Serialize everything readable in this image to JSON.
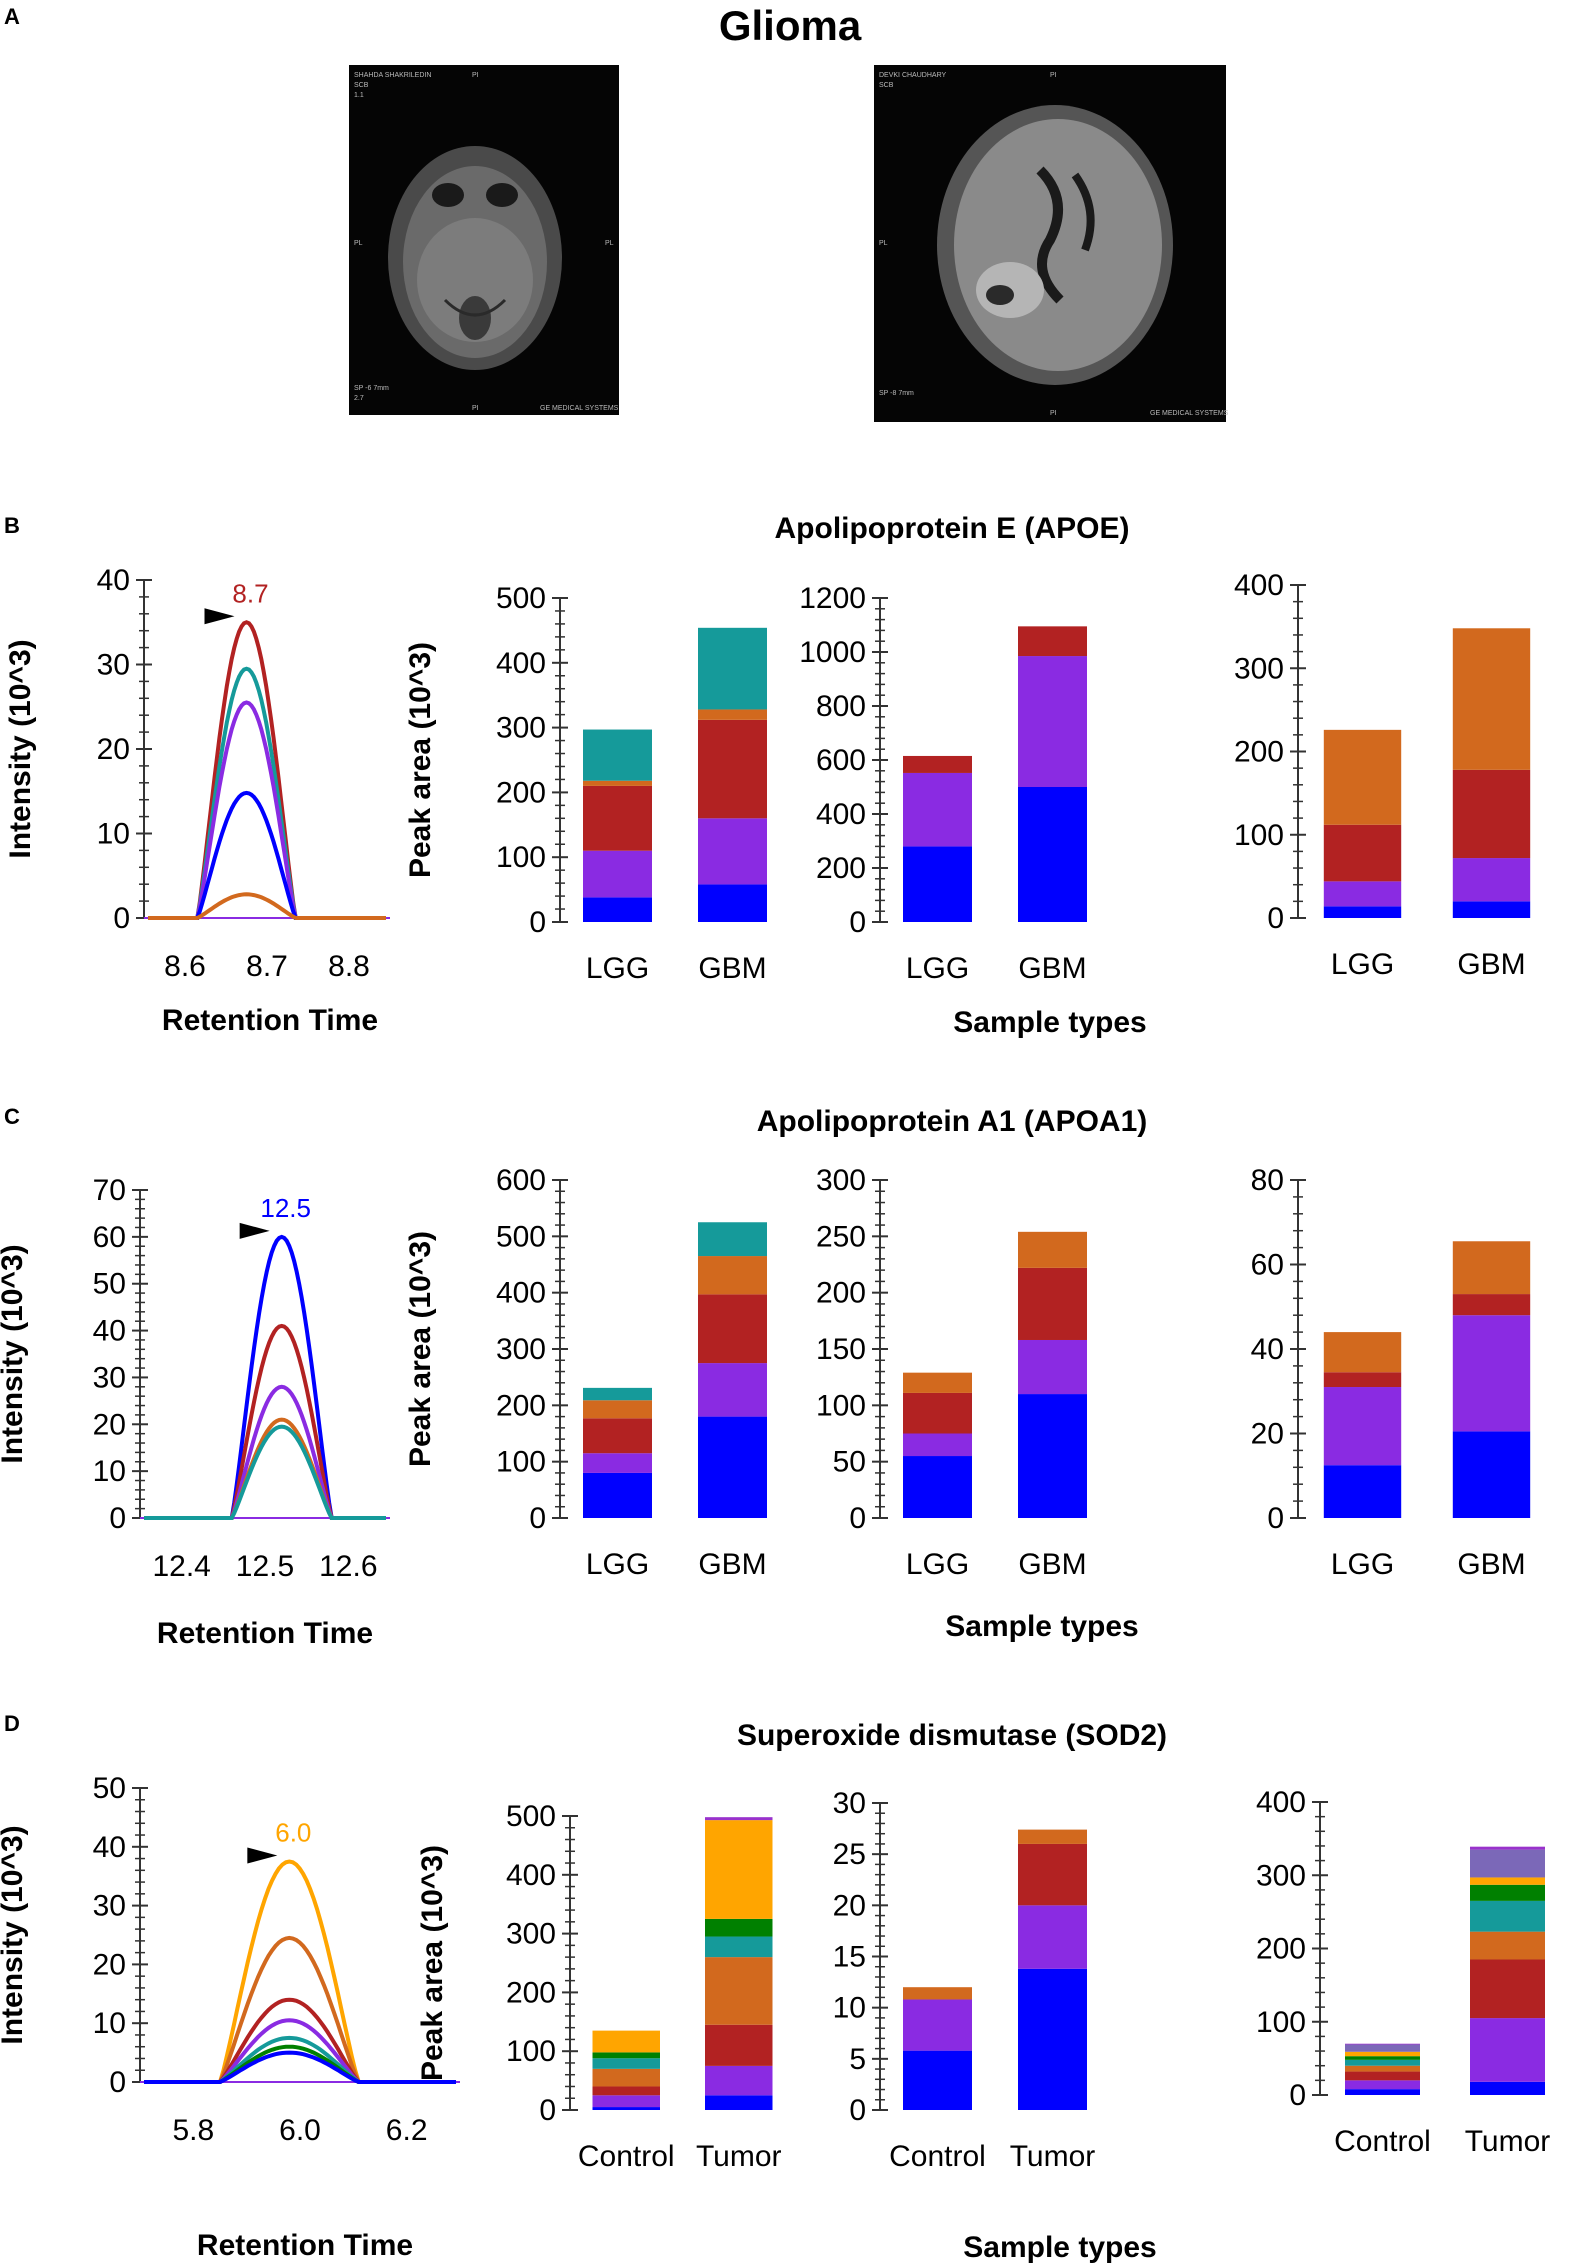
{
  "figure": {
    "title": "Glioma",
    "panel_labels": [
      "A",
      "B",
      "C",
      "D"
    ],
    "mri_images": [
      {
        "name": "mri-scan-left",
        "overlay_text": [
          "SHAHDA SHAKRILEDIN",
          "SCB",
          "1.1",
          "PI",
          "PL",
          "PL",
          "SP -6 7mm",
          "2.7",
          "PI",
          "GE MEDICAL SYSTEMS"
        ]
      },
      {
        "name": "mri-scan-right",
        "overlay_text": [
          "DEVKI CHAUDHARY",
          "SCB",
          "PI",
          "PL",
          "SP -8 7mm",
          "PI",
          "GE MEDICAL SYSTEMS"
        ]
      }
    ],
    "colors": {
      "blue": "#0000ff",
      "purple": "#8a2be2",
      "darkred": "#b22222",
      "orange": "#d2691e",
      "teal": "#159a9a",
      "gold": "#ffa500",
      "green": "#008000",
      "lavender": "#7b68b8"
    }
  },
  "chart_data": [
    {
      "panel": "B",
      "title": "Apolipoprotein E (APOE)",
      "type": "line",
      "xlabel": "Retention Time",
      "ylabel": "Intensity (10^3)",
      "xlim": [
        8.55,
        8.85
      ],
      "ylim": [
        0,
        40
      ],
      "xticks": [
        "8.6",
        "8.7",
        "8.8"
      ],
      "yticks": [
        "0",
        "10",
        "20",
        "30",
        "40"
      ],
      "peak_label": "8.7",
      "peak_label_color": "#b22222",
      "peak_x": 8.675,
      "peak_start": 8.615,
      "peak_end": 8.735,
      "series": [
        {
          "name": "trace-darkred",
          "color": "#b22222",
          "peak": 35
        },
        {
          "name": "trace-teal",
          "color": "#159a9a",
          "peak": 29.5
        },
        {
          "name": "trace-purple",
          "color": "#8a2be2",
          "peak": 25.5
        },
        {
          "name": "trace-blue",
          "color": "#0000ff",
          "peak": 14.8
        },
        {
          "name": "trace-orange",
          "color": "#d2691e",
          "peak": 2.8
        }
      ]
    },
    {
      "panel": "B",
      "type": "bar",
      "stacked": true,
      "ylabel": "Peak area (10^3)",
      "categories": [
        "LGG",
        "GBM"
      ],
      "ylim": [
        0,
        500
      ],
      "yticks": [
        "0",
        "100",
        "200",
        "300",
        "400",
        "500"
      ],
      "series": [
        {
          "name": "blue",
          "color": "#0000ff",
          "values": [
            38,
            58
          ]
        },
        {
          "name": "purple",
          "color": "#8a2be2",
          "values": [
            72,
            102
          ]
        },
        {
          "name": "darkred",
          "color": "#b22222",
          "values": [
            100,
            152
          ]
        },
        {
          "name": "orange",
          "color": "#d2691e",
          "values": [
            8,
            16
          ]
        },
        {
          "name": "teal",
          "color": "#159a9a",
          "values": [
            79,
            126
          ]
        }
      ]
    },
    {
      "panel": "B",
      "type": "bar",
      "stacked": true,
      "xlabel": "Sample types",
      "categories": [
        "LGG",
        "GBM"
      ],
      "ylim": [
        0,
        1200
      ],
      "yticks": [
        "0",
        "200",
        "400",
        "600",
        "800",
        "1000",
        "1200"
      ],
      "series": [
        {
          "name": "blue",
          "color": "#0000ff",
          "values": [
            280,
            500
          ]
        },
        {
          "name": "purple",
          "color": "#8a2be2",
          "values": [
            272,
            485
          ]
        },
        {
          "name": "darkred",
          "color": "#b22222",
          "values": [
            63,
            110
          ]
        }
      ]
    },
    {
      "panel": "B",
      "type": "bar",
      "stacked": true,
      "categories": [
        "LGG",
        "GBM"
      ],
      "ylim": [
        0,
        400
      ],
      "yticks": [
        "0",
        "100",
        "200",
        "300",
        "400"
      ],
      "series": [
        {
          "name": "blue",
          "color": "#0000ff",
          "values": [
            14,
            20
          ]
        },
        {
          "name": "purple",
          "color": "#8a2be2",
          "values": [
            30,
            52
          ]
        },
        {
          "name": "darkred",
          "color": "#b22222",
          "values": [
            68,
            106
          ]
        },
        {
          "name": "orange",
          "color": "#d2691e",
          "values": [
            114,
            170
          ]
        }
      ]
    },
    {
      "panel": "C",
      "title": "Apolipoprotein A1 (APOA1)",
      "type": "line",
      "xlabel": "Retention Time",
      "ylabel": "Intensity (10^3)",
      "xlim": [
        12.35,
        12.65
      ],
      "ylim": [
        0,
        70
      ],
      "xticks": [
        "12.4",
        "12.5",
        "12.6"
      ],
      "yticks": [
        "0",
        "10",
        "20",
        "30",
        "40",
        "50",
        "60",
        "70"
      ],
      "peak_label": "12.5",
      "peak_label_color": "#0000ff",
      "peak_x": 12.52,
      "peak_start": 12.46,
      "peak_end": 12.58,
      "series": [
        {
          "name": "trace-blue",
          "color": "#0000ff",
          "peak": 60
        },
        {
          "name": "trace-darkred",
          "color": "#b22222",
          "peak": 41
        },
        {
          "name": "trace-purple",
          "color": "#8a2be2",
          "peak": 28
        },
        {
          "name": "trace-orange",
          "color": "#d2691e",
          "peak": 21
        },
        {
          "name": "trace-teal",
          "color": "#159a9a",
          "peak": 19.5
        }
      ]
    },
    {
      "panel": "C",
      "type": "bar",
      "stacked": true,
      "ylabel": "Peak area (10^3)",
      "categories": [
        "LGG",
        "GBM"
      ],
      "ylim": [
        0,
        600
      ],
      "yticks": [
        "0",
        "100",
        "200",
        "300",
        "400",
        "500",
        "600"
      ],
      "series": [
        {
          "name": "blue",
          "color": "#0000ff",
          "values": [
            80,
            180
          ]
        },
        {
          "name": "purple",
          "color": "#8a2be2",
          "values": [
            35,
            95
          ]
        },
        {
          "name": "darkred",
          "color": "#b22222",
          "values": [
            62,
            122
          ]
        },
        {
          "name": "orange",
          "color": "#d2691e",
          "values": [
            32,
            68
          ]
        },
        {
          "name": "teal",
          "color": "#159a9a",
          "values": [
            22,
            60
          ]
        }
      ]
    },
    {
      "panel": "C",
      "type": "bar",
      "stacked": true,
      "xlabel": "Sample types",
      "categories": [
        "LGG",
        "GBM"
      ],
      "ylim": [
        0,
        300
      ],
      "yticks": [
        "0",
        "50",
        "100",
        "150",
        "200",
        "250",
        "300"
      ],
      "series": [
        {
          "name": "blue",
          "color": "#0000ff",
          "values": [
            55,
            110
          ]
        },
        {
          "name": "purple",
          "color": "#8a2be2",
          "values": [
            20,
            48
          ]
        },
        {
          "name": "darkred",
          "color": "#b22222",
          "values": [
            36,
            64
          ]
        },
        {
          "name": "orange",
          "color": "#d2691e",
          "values": [
            18,
            32
          ]
        }
      ]
    },
    {
      "panel": "C",
      "type": "bar",
      "stacked": true,
      "categories": [
        "LGG",
        "GBM"
      ],
      "ylim": [
        0,
        80
      ],
      "yticks": [
        "0",
        "20",
        "40",
        "60",
        "80"
      ],
      "series": [
        {
          "name": "blue",
          "color": "#0000ff",
          "values": [
            12.5,
            20.5
          ]
        },
        {
          "name": "purple",
          "color": "#8a2be2",
          "values": [
            18.5,
            27.5
          ]
        },
        {
          "name": "darkred",
          "color": "#b22222",
          "values": [
            3.5,
            5
          ]
        },
        {
          "name": "orange",
          "color": "#d2691e",
          "values": [
            9.5,
            12.5
          ]
        }
      ]
    },
    {
      "panel": "D",
      "title": "Superoxide dismutase (SOD2)",
      "type": "line",
      "xlabel": "Retention Time",
      "ylabel": "Intensity (10^3)",
      "xlim": [
        5.7,
        6.3
      ],
      "ylim": [
        0,
        50
      ],
      "xticks": [
        "5.8",
        "6.0",
        "6.2"
      ],
      "yticks": [
        "0",
        "10",
        "20",
        "30",
        "40",
        "50"
      ],
      "peak_label": "6.0",
      "peak_label_color": "#ffa500",
      "peak_x": 5.98,
      "peak_start": 5.85,
      "peak_end": 6.11,
      "series": [
        {
          "name": "trace-gold",
          "color": "#ffa500",
          "peak": 37.5
        },
        {
          "name": "trace-orange",
          "color": "#d2691e",
          "peak": 24.5
        },
        {
          "name": "trace-darkred",
          "color": "#b22222",
          "peak": 14
        },
        {
          "name": "trace-purple",
          "color": "#8a2be2",
          "peak": 10.5
        },
        {
          "name": "trace-teal",
          "color": "#159a9a",
          "peak": 7.5
        },
        {
          "name": "trace-green",
          "color": "#008000",
          "peak": 6
        },
        {
          "name": "trace-blue",
          "color": "#0000ff",
          "peak": 5
        }
      ]
    },
    {
      "panel": "D",
      "type": "bar",
      "stacked": true,
      "ylabel": "Peak area (10^3)",
      "categories": [
        "Control",
        "Tumor"
      ],
      "ylim": [
        0,
        500
      ],
      "yticks": [
        "0",
        "100",
        "200",
        "300",
        "400",
        "500"
      ],
      "series": [
        {
          "name": "blue",
          "color": "#0000ff",
          "values": [
            5,
            25
          ]
        },
        {
          "name": "purple",
          "color": "#8a2be2",
          "values": [
            20,
            50
          ]
        },
        {
          "name": "darkred",
          "color": "#b22222",
          "values": [
            15,
            70
          ]
        },
        {
          "name": "orange",
          "color": "#d2691e",
          "values": [
            30,
            115
          ]
        },
        {
          "name": "teal",
          "color": "#159a9a",
          "values": [
            18,
            35
          ]
        },
        {
          "name": "green",
          "color": "#008000",
          "values": [
            10,
            30
          ]
        },
        {
          "name": "gold",
          "color": "#ffa500",
          "values": [
            37,
            168
          ]
        },
        {
          "name": "magenta",
          "color": "#9932cc",
          "values": [
            0,
            5
          ]
        }
      ]
    },
    {
      "panel": "D",
      "type": "bar",
      "stacked": true,
      "xlabel": "Sample types",
      "categories": [
        "Control",
        "Tumor"
      ],
      "ylim": [
        0,
        30
      ],
      "yticks": [
        "0",
        "5",
        "10",
        "15",
        "20",
        "25",
        "30"
      ],
      "series": [
        {
          "name": "blue",
          "color": "#0000ff",
          "values": [
            5.8,
            13.8
          ]
        },
        {
          "name": "purple",
          "color": "#8a2be2",
          "values": [
            5,
            6.2
          ]
        },
        {
          "name": "darkred",
          "color": "#b22222",
          "values": [
            0,
            6
          ]
        },
        {
          "name": "orange",
          "color": "#d2691e",
          "values": [
            1.2,
            1.4
          ]
        }
      ]
    },
    {
      "panel": "D",
      "type": "bar",
      "stacked": true,
      "categories": [
        "Control",
        "Tumor"
      ],
      "ylim": [
        0,
        400
      ],
      "yticks": [
        "0",
        "100",
        "200",
        "300",
        "400"
      ],
      "series": [
        {
          "name": "blue",
          "color": "#0000ff",
          "values": [
            8,
            18
          ]
        },
        {
          "name": "purple",
          "color": "#8a2be2",
          "values": [
            12,
            87
          ]
        },
        {
          "name": "darkred",
          "color": "#b22222",
          "values": [
            12,
            80
          ]
        },
        {
          "name": "orange",
          "color": "#d2691e",
          "values": [
            8,
            38
          ]
        },
        {
          "name": "teal",
          "color": "#159a9a",
          "values": [
            8,
            42
          ]
        },
        {
          "name": "green",
          "color": "#008000",
          "values": [
            5,
            22
          ]
        },
        {
          "name": "gold",
          "color": "#ffa500",
          "values": [
            6,
            10
          ]
        },
        {
          "name": "lavender",
          "color": "#7b68b8",
          "values": [
            10,
            38
          ]
        },
        {
          "name": "magenta",
          "color": "#9932cc",
          "values": [
            1,
            4
          ]
        }
      ]
    }
  ]
}
